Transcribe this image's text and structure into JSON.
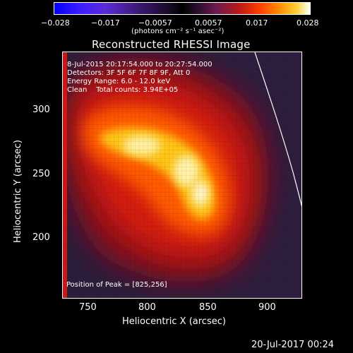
{
  "colorbar": {
    "ticks": [
      "−0.028",
      "−0.017",
      "−0.0057",
      "0.0057",
      "0.017",
      "0.028"
    ],
    "units": "(photons cm⁻² s⁻¹ asec⁻²)"
  },
  "title": "Reconstructed RHESSI Image",
  "info": {
    "time_range": "8-Jul-2015 20:17:54.000 to 20:27:54.000",
    "detectors": "Detectors: 3F 5F 6F 7F 8F 9F, Att 0",
    "energy": "Energy Range: 6.0 - 12.0 keV",
    "method": "Clean    Total counts: 3.94E+05"
  },
  "peak": "Position of Peak = [825,256]",
  "axes": {
    "xlabel": "Heliocentric X (arcsec)",
    "ylabel": "Heliocentric Y (arcsec)",
    "xticks": [
      "750",
      "800",
      "850",
      "900"
    ],
    "yticks": [
      "300",
      "250",
      "200"
    ]
  },
  "timestamp": "20-Jul-2017 00:24"
}
